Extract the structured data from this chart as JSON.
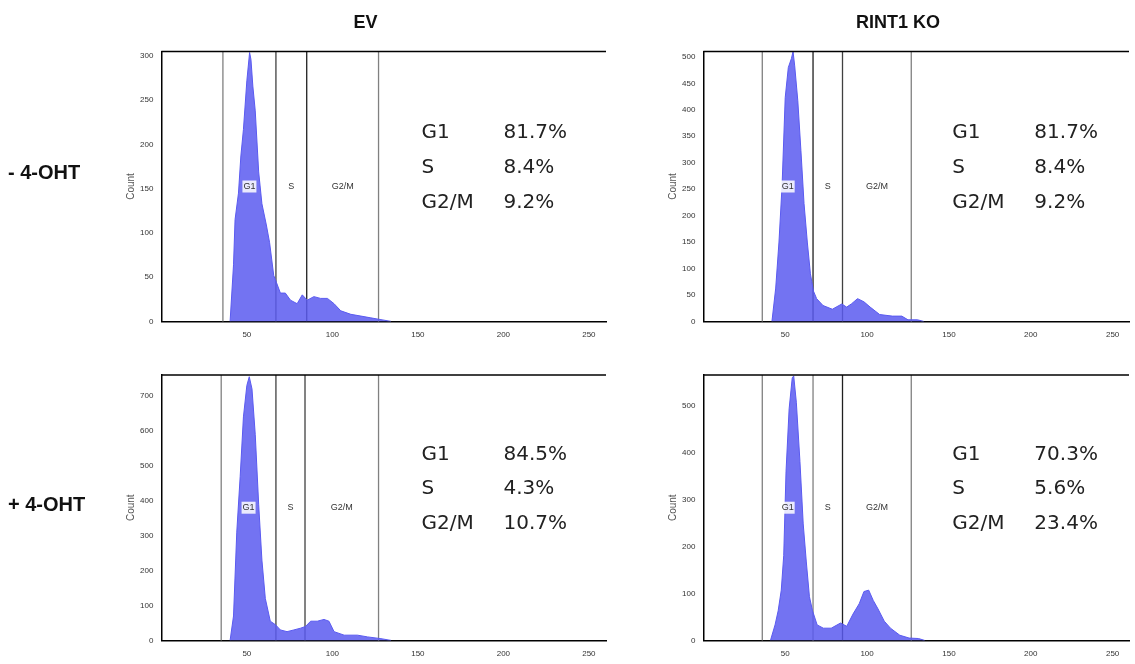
{
  "chart_data": [
    {
      "type": "area",
      "title": "EV",
      "subtitle": "- 4-OHT",
      "ylabel": "Count",
      "color": "#5a5af0",
      "x": [
        40.2,
        42.2,
        43.1,
        45.1,
        46.5,
        48,
        50,
        51.6,
        52.4,
        53.5,
        54.9,
        56.9,
        58.8,
        61.4,
        63.3,
        65.7,
        67.3,
        69.6,
        72.5,
        75.5,
        79.4,
        82.4,
        85.3,
        89.2,
        93.1,
        97.1,
        101,
        104.9,
        110.8,
        116.7,
        122.5,
        128.4,
        134.3
      ],
      "values": [
        0,
        64,
        115,
        145,
        187,
        217,
        272,
        304,
        296,
        266,
        238,
        169,
        133,
        109,
        89,
        52,
        44,
        32,
        32,
        24,
        20,
        30,
        24,
        28,
        26,
        26,
        20,
        12,
        8,
        6,
        4,
        2,
        0
      ],
      "xlim": [
        0,
        260
      ],
      "xticks": [
        50,
        100,
        150,
        200,
        250
      ],
      "ylim": [
        0,
        305
      ],
      "yticks": [
        0,
        50,
        100,
        150,
        200,
        250,
        300
      ],
      "ref_lines": [
        {
          "axis": "x",
          "value": 36,
          "label": "G1",
          "color": "#808080"
        },
        {
          "axis": "x",
          "value": 67,
          "label": "S",
          "color": "#404040"
        },
        {
          "axis": "x",
          "value": 85,
          "label": "G2/M",
          "color": "#202020"
        },
        {
          "axis": "x",
          "value": 127,
          "color": "#808080"
        }
      ],
      "annotations": [
        "G1 81.7%",
        "S 8.4%",
        "G2/M 9.2%"
      ]
    },
    {
      "type": "area",
      "title": "RINT1 KO",
      "ylabel": "Count",
      "color": "#5a5af0",
      "x": [
        41.9,
        44.2,
        46.2,
        48.1,
        50,
        51.9,
        53.8,
        54.8,
        55.8,
        57.7,
        59.6,
        61.5,
        63.5,
        65.4,
        67.3,
        69.2,
        73.1,
        78.8,
        84.6,
        87.5,
        90.4,
        94.2,
        98.1,
        101.9,
        107.7,
        115.4,
        121.2,
        125,
        130.8,
        134.6
      ],
      "values": [
        0,
        63,
        150,
        257,
        423,
        480,
        497,
        510,
        483,
        417,
        323,
        223,
        150,
        90,
        57,
        43,
        30,
        23,
        33,
        27,
        33,
        43,
        37,
        27,
        13,
        10,
        10,
        3,
        3,
        0
      ],
      "xlim": [
        0,
        260
      ],
      "xticks": [
        50,
        100,
        150,
        200,
        250
      ],
      "ylim": [
        0,
        510
      ],
      "yticks": [
        0,
        50,
        100,
        150,
        200,
        250,
        300,
        350,
        400,
        450,
        500
      ],
      "ref_lines": [
        {
          "axis": "x",
          "value": 36,
          "label": "G1",
          "color": "#808080"
        },
        {
          "axis": "x",
          "value": 67,
          "label": "S",
          "color": "#202020"
        },
        {
          "axis": "x",
          "value": 85,
          "label": "G2/M",
          "color": "#404040"
        },
        {
          "axis": "x",
          "value": 127,
          "color": "#808080"
        }
      ],
      "annotations": [
        "G1 81.7%",
        "S 8.4%",
        "G2/M 9.2%"
      ]
    },
    {
      "type": "area",
      "subtitle": "+ 4-OHT",
      "ylabel": "Count",
      "color": "#5a5af0",
      "x": [
        40.2,
        42.2,
        44.1,
        46.1,
        48,
        50,
        51.4,
        53,
        54.9,
        56.9,
        58.8,
        60.8,
        63.7,
        66.7,
        69.6,
        73.5,
        77.5,
        81.4,
        84.3,
        87.3,
        91.2,
        95.1,
        98,
        101,
        106.9,
        114.7,
        120.6,
        128.4,
        134.3
      ],
      "values": [
        0,
        70,
        310,
        470,
        640,
        730,
        755,
        720,
        590,
        390,
        230,
        120,
        55,
        45,
        30,
        25,
        30,
        35,
        40,
        55,
        55,
        60,
        55,
        25,
        15,
        15,
        10,
        5,
        0
      ],
      "xlim": [
        0,
        260
      ],
      "xticks": [
        50,
        100,
        150,
        200,
        250
      ],
      "ylim": [
        0,
        760
      ],
      "yticks": [
        0,
        100,
        200,
        300,
        400,
        500,
        600,
        700
      ],
      "ref_lines": [
        {
          "axis": "x",
          "value": 35,
          "label": "G1",
          "color": "#808080"
        },
        {
          "axis": "x",
          "value": 67,
          "label": "S",
          "color": "#404040"
        },
        {
          "axis": "x",
          "value": 84,
          "label": "G2/M",
          "color": "#404040"
        },
        {
          "axis": "x",
          "value": 127,
          "color": "#808080"
        }
      ],
      "annotations": [
        "G1 84.5%",
        "S 4.3%",
        "G2/M 10.7%"
      ]
    },
    {
      "type": "area",
      "ylabel": "Count",
      "color": "#5a5af0",
      "x": [
        41,
        43.8,
        45.7,
        47.6,
        49.1,
        50.5,
        52.4,
        54.3,
        55.2,
        56.8,
        59,
        61,
        62.9,
        64.8,
        66.7,
        69.5,
        73.3,
        78.1,
        83.8,
        87.6,
        91.4,
        95.2,
        98.1,
        101,
        103.8,
        106.7,
        110.5,
        114.3,
        120,
        125.7,
        131.4,
        135.2
      ],
      "values": [
        0,
        33,
        63,
        107,
        181,
        359,
        493,
        559,
        563,
        507,
        381,
        248,
        167,
        93,
        63,
        33,
        26,
        26,
        37,
        30,
        56,
        78,
        104,
        107,
        85,
        67,
        41,
        26,
        11,
        5,
        4,
        0
      ],
      "xlim": [
        0,
        260
      ],
      "xticks": [
        50,
        100,
        150,
        200,
        250
      ],
      "ylim": [
        0,
        565
      ],
      "yticks": [
        0,
        100,
        200,
        300,
        400,
        500
      ],
      "ref_lines": [
        {
          "axis": "x",
          "value": 36,
          "label": "G1",
          "color": "#808080"
        },
        {
          "axis": "x",
          "value": 67,
          "label": "S",
          "color": "#808080"
        },
        {
          "axis": "x",
          "value": 85,
          "label": "G2/M",
          "color": "#202020"
        },
        {
          "axis": "x",
          "value": 127,
          "color": "#808080"
        }
      ],
      "annotations": [
        "G1 70.3%",
        "S 5.6%",
        "G2/M 23.4%"
      ]
    }
  ]
}
